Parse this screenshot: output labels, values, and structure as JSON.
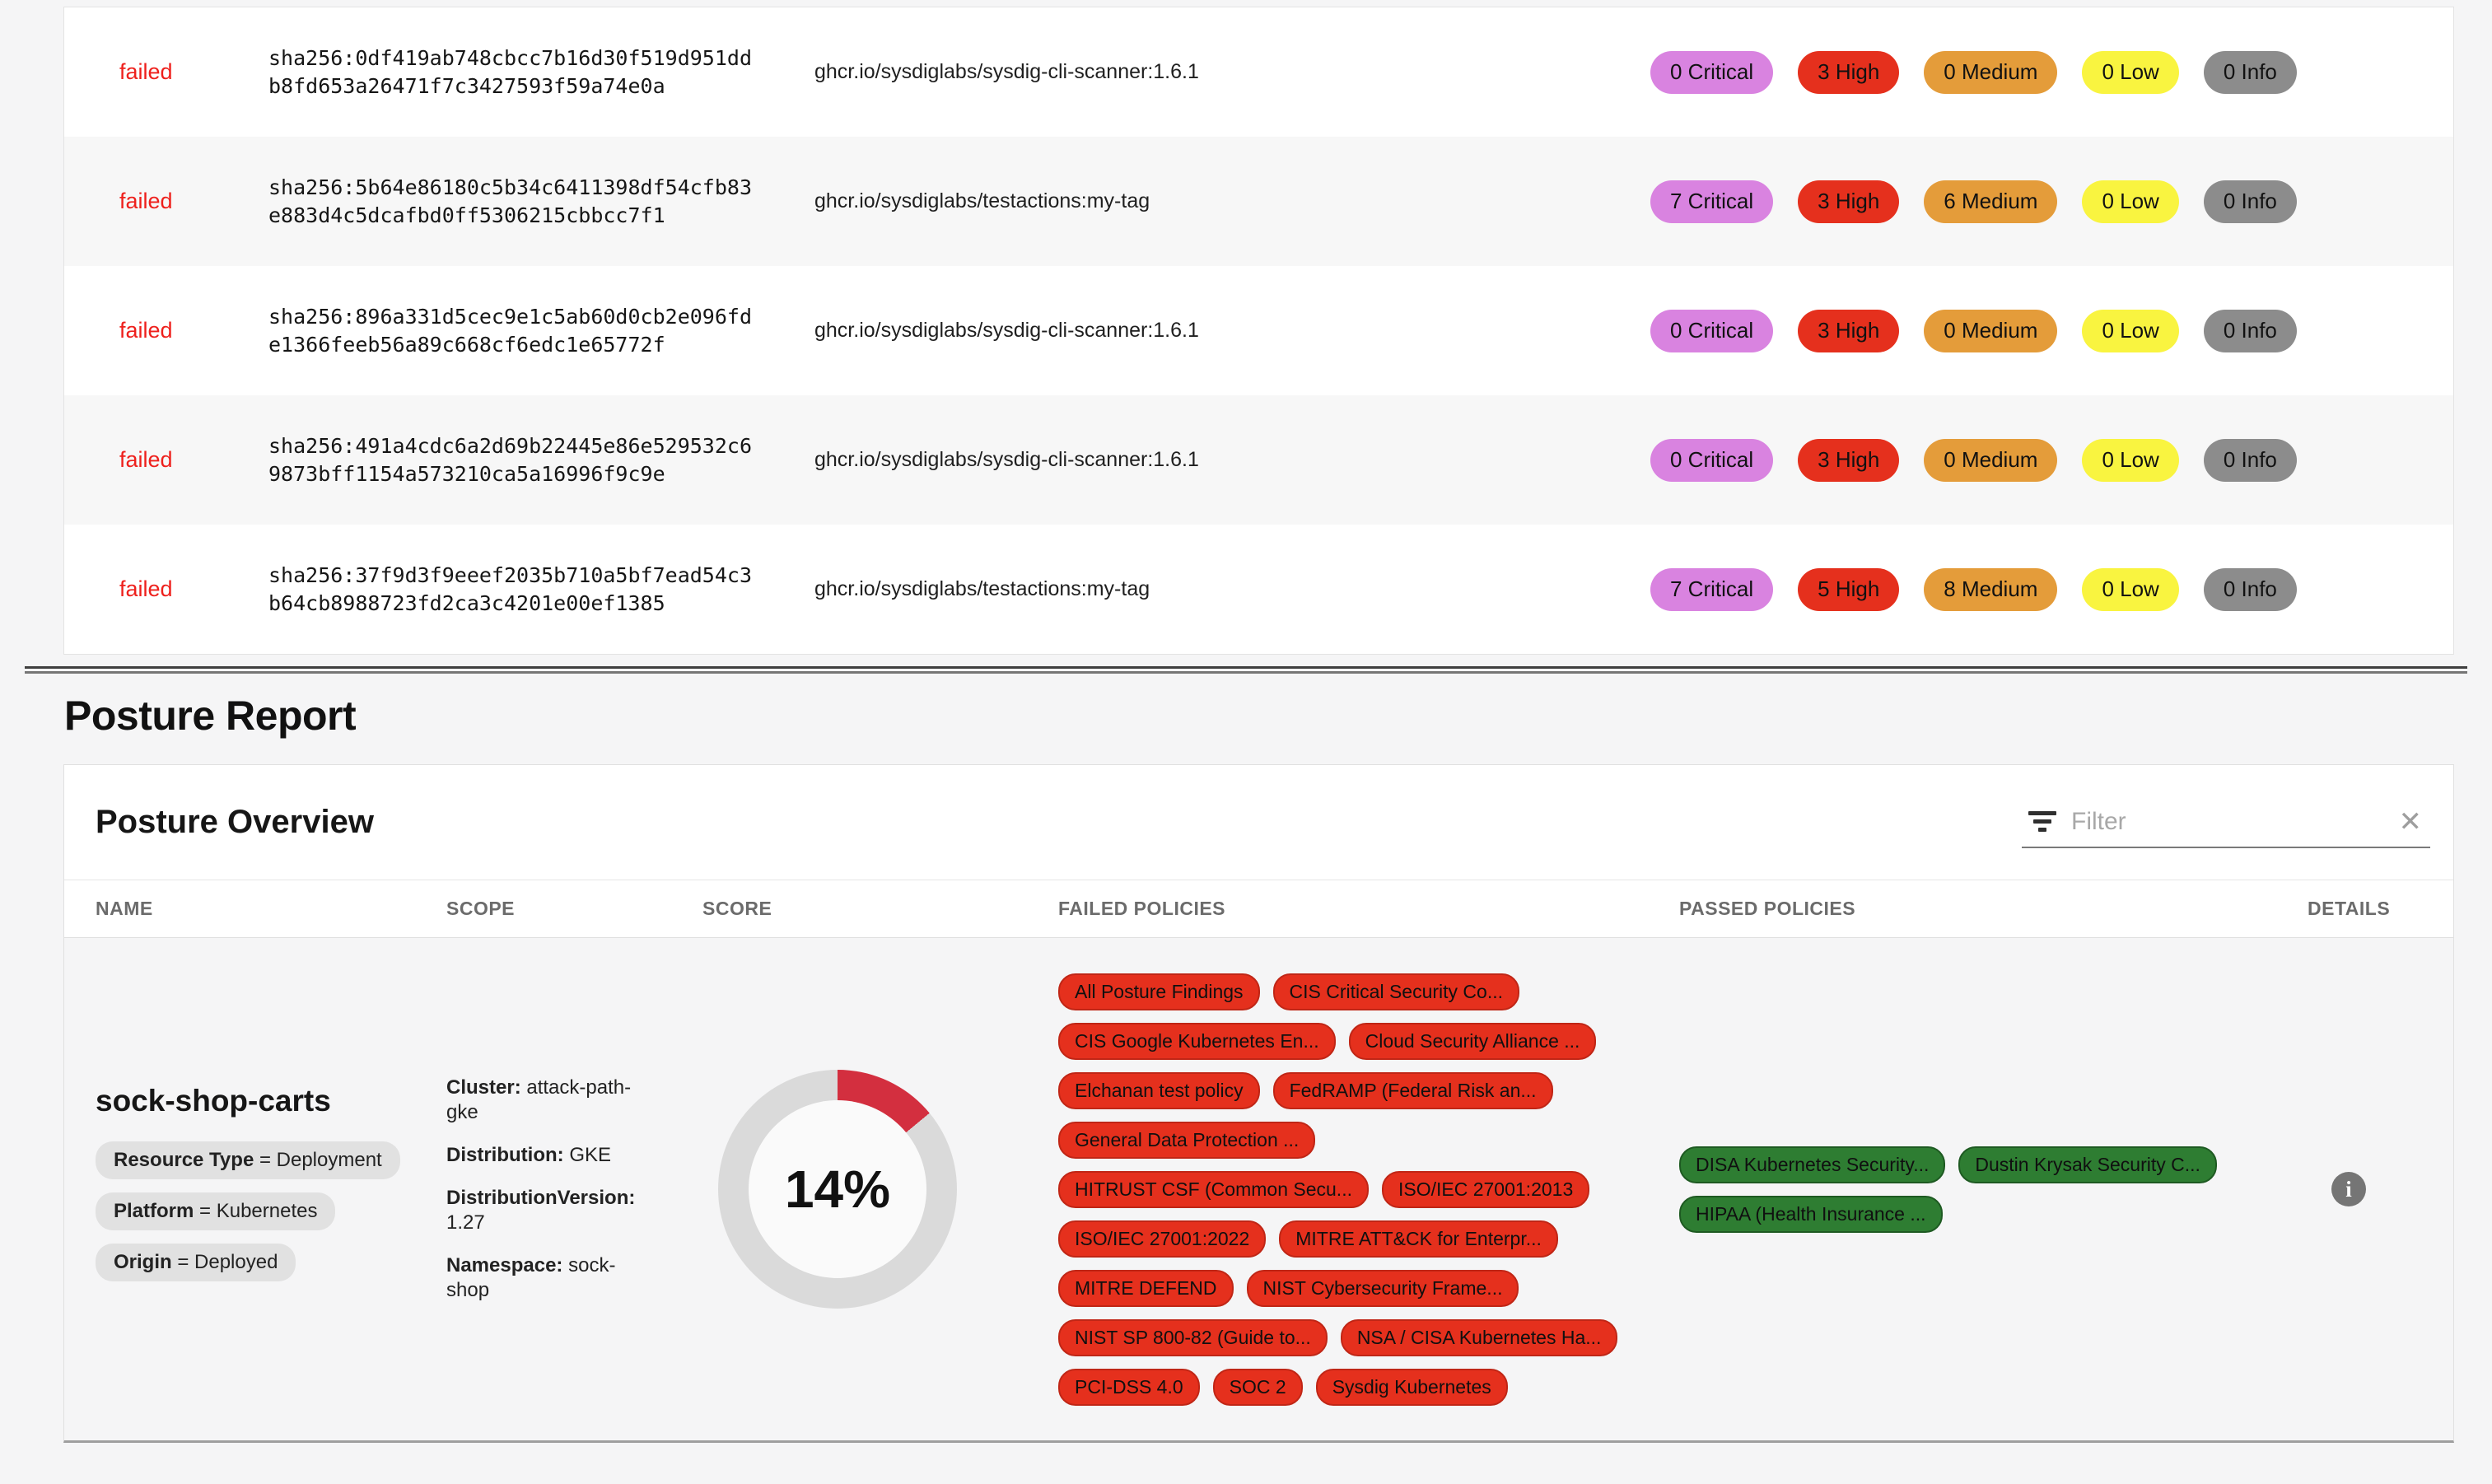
{
  "scan_report": {
    "status_label": "failed",
    "severity_colors": {
      "critical": "#d983e0",
      "high": "#e5301d",
      "medium": "#e49c3a",
      "low": "#f9f440",
      "info": "#8c8c8c"
    },
    "rows": [
      {
        "status": "failed",
        "digest": "sha256:0df419ab748cbcc7b16d30f519d951ddb8fd653a26471f7c3427593f59a74e0a",
        "image": "ghcr.io/sysdiglabs/sysdig-cli-scanner:1.6.1",
        "badges": [
          {
            "label": "0 Critical",
            "level": "critical"
          },
          {
            "label": "3 High",
            "level": "high"
          },
          {
            "label": "0 Medium",
            "level": "medium"
          },
          {
            "label": "0 Low",
            "level": "low"
          },
          {
            "label": "0 Info",
            "level": "info"
          }
        ]
      },
      {
        "status": "failed",
        "digest": "sha256:5b64e86180c5b34c6411398df54cfb83e883d4c5dcafbd0ff5306215cbbcc7f1",
        "image": "ghcr.io/sysdiglabs/testactions:my-tag",
        "badges": [
          {
            "label": "7 Critical",
            "level": "critical"
          },
          {
            "label": "3 High",
            "level": "high"
          },
          {
            "label": "6 Medium",
            "level": "medium"
          },
          {
            "label": "0 Low",
            "level": "low"
          },
          {
            "label": "0 Info",
            "level": "info"
          }
        ]
      },
      {
        "status": "failed",
        "digest": "sha256:896a331d5cec9e1c5ab60d0cb2e096fde1366feeb56a89c668cf6edc1e65772f",
        "image": "ghcr.io/sysdiglabs/sysdig-cli-scanner:1.6.1",
        "badges": [
          {
            "label": "0 Critical",
            "level": "critical"
          },
          {
            "label": "3 High",
            "level": "high"
          },
          {
            "label": "0 Medium",
            "level": "medium"
          },
          {
            "label": "0 Low",
            "level": "low"
          },
          {
            "label": "0 Info",
            "level": "info"
          }
        ]
      },
      {
        "status": "failed",
        "digest": "sha256:491a4cdc6a2d69b22445e86e529532c69873bff1154a573210ca5a16996f9c9e",
        "image": "ghcr.io/sysdiglabs/sysdig-cli-scanner:1.6.1",
        "badges": [
          {
            "label": "0 Critical",
            "level": "critical"
          },
          {
            "label": "3 High",
            "level": "high"
          },
          {
            "label": "0 Medium",
            "level": "medium"
          },
          {
            "label": "0 Low",
            "level": "low"
          },
          {
            "label": "0 Info",
            "level": "info"
          }
        ]
      },
      {
        "status": "failed",
        "digest": "sha256:37f9d3f9eeef2035b710a5bf7ead54c3b64cb8988723fd2ca3c4201e00ef1385",
        "image": "ghcr.io/sysdiglabs/testactions:my-tag",
        "badges": [
          {
            "label": "7 Critical",
            "level": "critical"
          },
          {
            "label": "5 High",
            "level": "high"
          },
          {
            "label": "8 Medium",
            "level": "medium"
          },
          {
            "label": "0 Low",
            "level": "low"
          },
          {
            "label": "0 Info",
            "level": "info"
          }
        ]
      }
    ]
  },
  "posture_report": {
    "title": "Posture Report",
    "overview_title": "Posture Overview",
    "filter": {
      "placeholder": "Filter",
      "clear_icon": "✕"
    },
    "columns": [
      "NAME",
      "SCOPE",
      "SCORE",
      "FAILED POLICIES",
      "PASSED POLICIES",
      "DETAILS"
    ],
    "row": {
      "name": "sock-shop-carts",
      "tags": [
        {
          "key": "Resource Type",
          "separator": "=",
          "value": "Deployment"
        },
        {
          "key": "Platform",
          "separator": "=",
          "value": "Kubernetes"
        },
        {
          "key": "Origin",
          "separator": "=",
          "value": "Deployed"
        }
      ],
      "scope": [
        {
          "key": "Cluster:",
          "value": "attack-path-gke"
        },
        {
          "key": "Distribution:",
          "value": "GKE"
        },
        {
          "key": "DistributionVersion:",
          "value": "1.27"
        },
        {
          "key": "Namespace:",
          "value": "sock-shop"
        }
      ],
      "score_label": "14%",
      "score_percent": 14,
      "score_colors": {
        "arc": "#d32f3f",
        "ring": "#dadada",
        "hole": "#fafafa"
      },
      "failed_policies": [
        "All Posture Findings",
        "CIS Critical Security Co...",
        "CIS Google Kubernetes En...",
        "Cloud Security Alliance ...",
        "Elchanan test policy",
        "FedRAMP (Federal Risk an...",
        "General Data Protection ...",
        "HITRUST CSF (Common Secu...",
        "ISO/IEC 27001:2013",
        "ISO/IEC 27001:2022",
        "MITRE ATT&CK for Enterpr...",
        "MITRE DEFEND",
        "NIST Cybersecurity Frame...",
        "NIST SP 800-82 (Guide to...",
        "NSA / CISA Kubernetes Ha...",
        "PCI-DSS 4.0",
        "SOC 2",
        "Sysdig Kubernetes"
      ],
      "failed_color": "#e5301d",
      "passed_policies": [
        "DISA Kubernetes Security...",
        "Dustin Krysak Security C...",
        "HIPAA (Health Insurance ..."
      ],
      "passed_color": "#2e7d32",
      "details_icon": "i"
    }
  }
}
